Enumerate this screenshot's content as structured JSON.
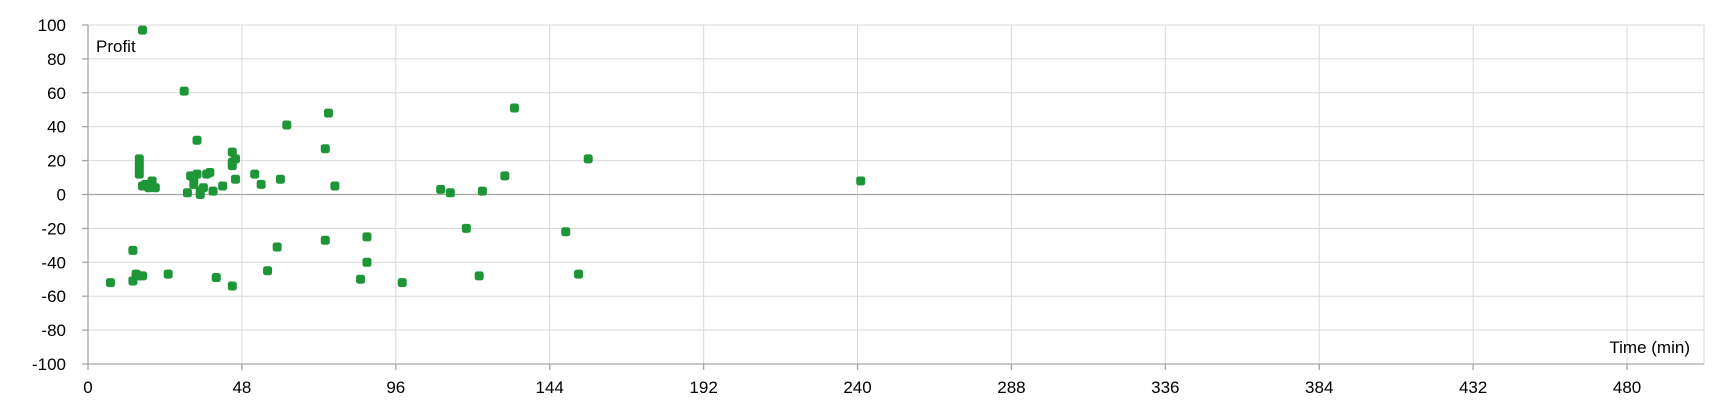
{
  "chart_data": {
    "type": "scatter",
    "title": "",
    "xlabel": "Time (min)",
    "ylabel": "Profit",
    "xlim": [
      0,
      504
    ],
    "ylim": [
      -100,
      100
    ],
    "x_ticks": [
      0,
      48,
      96,
      144,
      192,
      240,
      288,
      336,
      384,
      432,
      480
    ],
    "y_ticks": [
      100,
      80,
      60,
      40,
      20,
      0,
      -20,
      -40,
      -60,
      -80,
      -100
    ],
    "grid": true,
    "legend": "none",
    "colors": {
      "marker": "#1e9638",
      "grid": "#d9d9d9",
      "axis": "#a6a6a6"
    },
    "series": [
      {
        "points": [
          [
            7,
            -52
          ],
          [
            14,
            -51
          ],
          [
            14,
            -33
          ],
          [
            15,
            -47
          ],
          [
            16,
            -48
          ],
          [
            17,
            -48
          ],
          [
            16,
            21
          ],
          [
            16,
            18
          ],
          [
            16,
            15
          ],
          [
            16,
            12
          ],
          [
            17,
            5
          ],
          [
            18,
            6
          ],
          [
            19,
            4
          ],
          [
            20,
            8
          ],
          [
            21,
            4
          ],
          [
            17,
            97
          ],
          [
            25,
            -47
          ],
          [
            30,
            61
          ],
          [
            31,
            1
          ],
          [
            32,
            11
          ],
          [
            33,
            9
          ],
          [
            33,
            6
          ],
          [
            34,
            32
          ],
          [
            34,
            12
          ],
          [
            35,
            2
          ],
          [
            35,
            0
          ],
          [
            36,
            4
          ],
          [
            37,
            12
          ],
          [
            38,
            13
          ],
          [
            39,
            2
          ],
          [
            40,
            -49
          ],
          [
            42,
            5
          ],
          [
            45,
            25
          ],
          [
            45,
            19
          ],
          [
            46,
            21
          ],
          [
            45,
            17
          ],
          [
            46,
            9
          ],
          [
            45,
            -54
          ],
          [
            52,
            12
          ],
          [
            54,
            6
          ],
          [
            56,
            -45
          ],
          [
            59,
            -31
          ],
          [
            60,
            9
          ],
          [
            62,
            41
          ],
          [
            74,
            27
          ],
          [
            74,
            -27
          ],
          [
            75,
            48
          ],
          [
            77,
            5
          ],
          [
            85,
            -50
          ],
          [
            87,
            -40
          ],
          [
            87,
            -25
          ],
          [
            98,
            -52
          ],
          [
            110,
            3
          ],
          [
            113,
            1
          ],
          [
            118,
            -20
          ],
          [
            122,
            -48
          ],
          [
            123,
            2
          ],
          [
            130,
            11
          ],
          [
            133,
            51
          ],
          [
            149,
            -22
          ],
          [
            153,
            -47
          ],
          [
            156,
            21
          ],
          [
            241,
            8
          ]
        ]
      }
    ]
  }
}
